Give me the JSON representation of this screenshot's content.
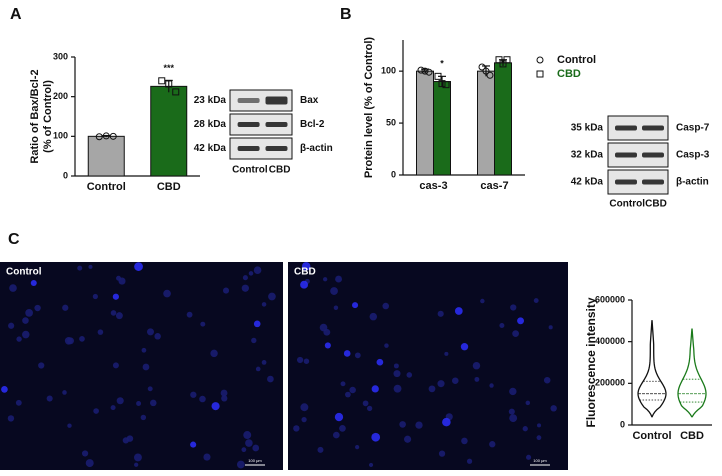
{
  "panel_labels": [
    "A",
    "B",
    "C"
  ],
  "chart_data": [
    {
      "type": "bar",
      "ylabel": [
        "Ratio of Bax/Bcl-2",
        "(% of Control)"
      ],
      "categories": [
        "Control",
        "CBD"
      ],
      "values": [
        100,
        226
      ],
      "errors": [
        2,
        15
      ],
      "points": [
        [
          99,
          101,
          100
        ],
        [
          240,
          232,
          212
        ]
      ],
      "markers": [
        "circle",
        "square"
      ],
      "colors": [
        "#a6a6a6",
        "#1a6b1a"
      ],
      "significance": [
        null,
        "***"
      ],
      "ylim": [
        0,
        300
      ],
      "yticks": [
        0,
        100,
        200,
        300
      ]
    },
    {
      "type": "grouped-bar",
      "ylabel": "Protein level (% of Control)",
      "categories": [
        "cas-3",
        "cas-7"
      ],
      "series": [
        {
          "name": "Control",
          "color": "#a6a6a6",
          "marker": "circle",
          "values": [
            100,
            100
          ],
          "errors": [
            2,
            5
          ],
          "points": [
            [
              101,
              100,
              99
            ],
            [
              104,
              100,
              96
            ]
          ],
          "significance": [
            null,
            null
          ]
        },
        {
          "name": "CBD",
          "color": "#1a6b1a",
          "marker": "square",
          "values": [
            90,
            108
          ],
          "errors": [
            5,
            3
          ],
          "points": [
            [
              95,
              88,
              87
            ],
            [
              111,
              107,
              111
            ]
          ],
          "significance": [
            "*",
            null
          ]
        }
      ],
      "ylim": [
        0,
        130
      ],
      "yticks": [
        0,
        50,
        100
      ]
    },
    {
      "type": "violin",
      "ylabel": "Fluorescence intensity",
      "categories": [
        "Control",
        "CBD"
      ],
      "series": [
        {
          "name": "Control",
          "color": "#111111",
          "min": 40000,
          "q1": 120000,
          "median": 150000,
          "q3": 210000,
          "max": 500000
        },
        {
          "name": "CBD",
          "color": "#1a7a1a",
          "min": 40000,
          "q1": 110000,
          "median": 150000,
          "q3": 220000,
          "max": 460000
        }
      ],
      "ylim": [
        0,
        600000
      ],
      "yticks": [
        0,
        200000,
        400000,
        600000
      ]
    }
  ],
  "blots": [
    {
      "lanes": [
        "Control",
        "CBD"
      ],
      "rows": [
        {
          "kda": "23 kDa",
          "protein": "Bax"
        },
        {
          "kda": "28 kDa",
          "protein": "Bcl-2"
        },
        {
          "kda": "42 kDa",
          "protein": "β-actin"
        }
      ]
    },
    {
      "lanes": [
        "Control",
        "CBD"
      ],
      "rows": [
        {
          "kda": "35 kDa",
          "protein": "Casp-7"
        },
        {
          "kda": "32 kDa",
          "protein": "Casp-3"
        },
        {
          "kda": "42 kDa",
          "protein": "β-actin"
        }
      ]
    }
  ],
  "micrographs": [
    {
      "label": "Control",
      "scale_bar": "100 μm"
    },
    {
      "label": "CBD",
      "scale_bar": "100 μm"
    }
  ]
}
